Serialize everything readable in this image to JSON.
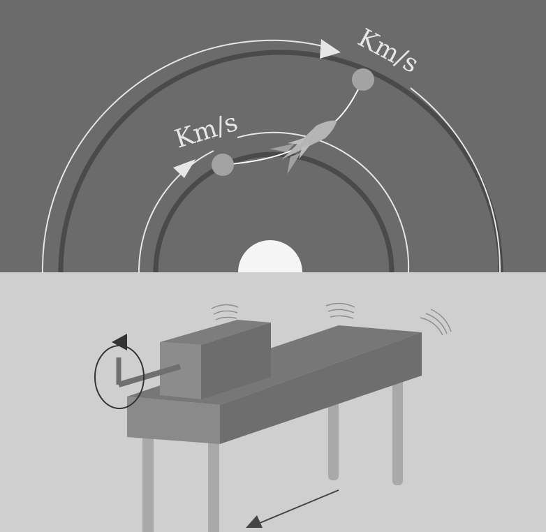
{
  "orbits": {
    "inner_speed_label": "Km/s",
    "outer_speed_label": "Km/s"
  },
  "colors": {
    "sky": "#6b6b6b",
    "ground": "#cfcfcf",
    "orbit_dark": "#4a4a4a",
    "orbit_light": "#e6e6e6",
    "planet": "#f5f5f5",
    "satellite": "#a3a3a3",
    "rocket": "#b5b5b5"
  },
  "icons": [
    "rocket-icon",
    "rotation-arrow-icon",
    "vibration-wave-icon",
    "direction-arrow-icon"
  ]
}
